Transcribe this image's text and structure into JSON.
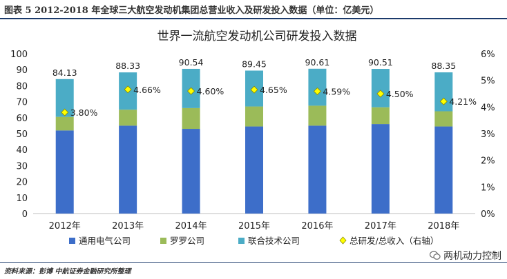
{
  "caption": "图表 5 2012-2018 年全球三大航空发动机集团总营业收入及研发投入数据（单位：亿美元）",
  "source": "资料来源：彭博 中航证券金融研究所整理",
  "watermark": "两机动力控制",
  "chart_data": {
    "type": "bar",
    "stacked": true,
    "title": "世界一流航空发动机公司研发投入数据",
    "categories": [
      "2012年",
      "2013年",
      "2014年",
      "2015年",
      "2016年",
      "2017年",
      "2018年"
    ],
    "series": [
      {
        "name": "通用电气公司",
        "color": "#3d6ec9",
        "values": [
          52.0,
          55.0,
          53.0,
          54.5,
          55.0,
          56.0,
          54.5
        ]
      },
      {
        "name": "罗罗公司",
        "color": "#9bbb59",
        "values": [
          8.5,
          10.0,
          13.0,
          12.5,
          12.5,
          10.5,
          9.5
        ]
      },
      {
        "name": "联合技术公司",
        "color": "#4bacc6",
        "values": [
          23.63,
          23.33,
          24.54,
          22.45,
          23.11,
          24.01,
          24.35
        ]
      }
    ],
    "totals": [
      84.13,
      88.33,
      90.54,
      89.45,
      90.61,
      90.51,
      88.35
    ],
    "ratio_series": {
      "name": "总研发/总收入（右轴）",
      "color": "#ffff00",
      "values": [
        3.8,
        4.66,
        4.6,
        4.65,
        4.59,
        4.5,
        4.21
      ],
      "labels": [
        "3.80%",
        "4.66%",
        "4.60%",
        "4.65%",
        "4.59%",
        "4.50%",
        "4.21%"
      ]
    },
    "y_left": {
      "min": 0,
      "max": 100,
      "ticks": [
        "0",
        "10",
        "20",
        "30",
        "40",
        "50",
        "60",
        "70",
        "80",
        "90",
        "100"
      ]
    },
    "y_right": {
      "min": 0,
      "max": 6,
      "ticks": [
        "0%",
        "1%",
        "2%",
        "3%",
        "4%",
        "5%",
        "6%"
      ]
    },
    "legend_position": "bottom",
    "grid": false
  }
}
